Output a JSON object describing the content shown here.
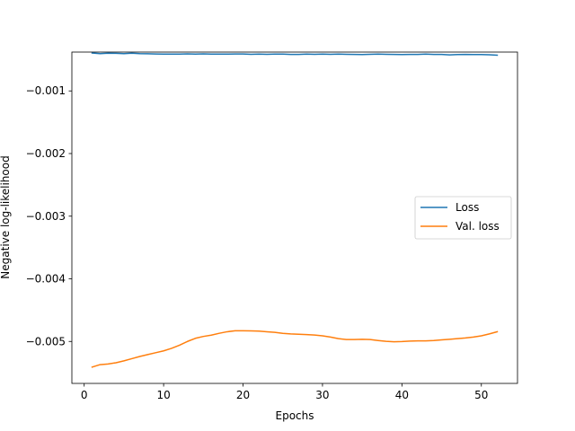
{
  "chart_data": {
    "type": "line",
    "title": "",
    "xlabel": "Epochs",
    "ylabel": "Negative log-likelihood",
    "xlim": [
      -1.55,
      54.55
    ],
    "ylim": [
      -0.00567,
      -0.00038
    ],
    "xticks": [
      0,
      10,
      20,
      30,
      40,
      50
    ],
    "xtick_labels": [
      "0",
      "10",
      "20",
      "30",
      "40",
      "50"
    ],
    "yticks": [
      -0.001,
      -0.002,
      -0.003,
      -0.004,
      -0.005
    ],
    "ytick_labels": [
      "−0.001",
      "−0.002",
      "−0.003",
      "−0.004",
      "−0.005"
    ],
    "grid": false,
    "legend_position": "center-right",
    "x": [
      1,
      2,
      3,
      4,
      5,
      6,
      7,
      8,
      9,
      10,
      11,
      12,
      13,
      14,
      15,
      16,
      17,
      18,
      19,
      20,
      21,
      22,
      23,
      24,
      25,
      26,
      27,
      28,
      29,
      30,
      31,
      32,
      33,
      34,
      35,
      36,
      37,
      38,
      39,
      40,
      41,
      42,
      43,
      44,
      45,
      46,
      47,
      48,
      49,
      50,
      51,
      52
    ],
    "series": [
      {
        "name": "Loss",
        "color": "#1f77b4",
        "values": [
          -0.000395,
          -0.000405,
          -0.000398,
          -0.0004,
          -0.000405,
          -0.000398,
          -0.000405,
          -0.000407,
          -0.00041,
          -0.000412,
          -0.000412,
          -0.000412,
          -0.000408,
          -0.000413,
          -0.000408,
          -0.000413,
          -0.000412,
          -0.000413,
          -0.00041,
          -0.00041,
          -0.000415,
          -0.000412,
          -0.000415,
          -0.000413,
          -0.000413,
          -0.000417,
          -0.000418,
          -0.000413,
          -0.000415,
          -0.000413,
          -0.000415,
          -0.000413,
          -0.000415,
          -0.000418,
          -0.00042,
          -0.000415,
          -0.000413,
          -0.000415,
          -0.000417,
          -0.00042,
          -0.000417,
          -0.000417,
          -0.000413,
          -0.000417,
          -0.000417,
          -0.000425,
          -0.00042,
          -0.000417,
          -0.00042,
          -0.00042,
          -0.000423,
          -0.00043
        ]
      },
      {
        "name": "Val. loss",
        "color": "#ff7f0e",
        "values": [
          -0.00541,
          -0.00537,
          -0.00536,
          -0.00534,
          -0.00531,
          -0.005275,
          -0.00524,
          -0.00521,
          -0.00518,
          -0.00515,
          -0.00511,
          -0.00506,
          -0.005,
          -0.00495,
          -0.00492,
          -0.0049,
          -0.00487,
          -0.004845,
          -0.00483,
          -0.00483,
          -0.004832,
          -0.004835,
          -0.004845,
          -0.004855,
          -0.00487,
          -0.00488,
          -0.004885,
          -0.00489,
          -0.004897,
          -0.00491,
          -0.00493,
          -0.004955,
          -0.00497,
          -0.00497,
          -0.004965,
          -0.00497,
          -0.004985,
          -0.004998,
          -0.005005,
          -0.005002,
          -0.004995,
          -0.00499,
          -0.00499,
          -0.004985,
          -0.004975,
          -0.004965,
          -0.004955,
          -0.004945,
          -0.00493,
          -0.00491,
          -0.00488,
          -0.004845
        ]
      }
    ]
  }
}
